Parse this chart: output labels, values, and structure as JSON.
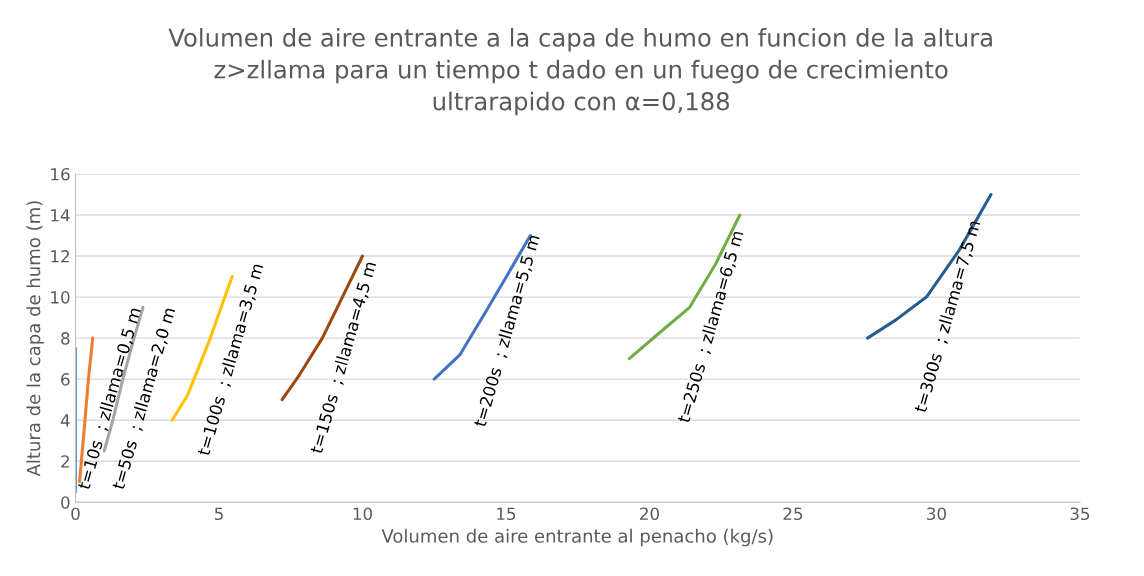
{
  "chart_data": {
    "type": "line",
    "title": "Volumen de aire entrante a la capa de humo en funcion de la altura\nz>zllama para un tiempo t dado en un fuego de crecimiento\nultrarapido con α=0,188",
    "xlabel": "Volumen de aire entrante al penacho (kg/s)",
    "ylabel": "Altura de la capa de humo (m)",
    "xlim": [
      0,
      35
    ],
    "xticks": [
      0,
      5,
      10,
      15,
      20,
      25,
      30,
      35
    ],
    "ylim": [
      0,
      16
    ],
    "yticks": [
      0,
      2,
      4,
      6,
      8,
      10,
      12,
      14,
      16
    ],
    "grid": "y",
    "legend": false,
    "marker": "none",
    "line_style": "solid",
    "series": [
      {
        "color": "#5b9bd5",
        "x": [
          0,
          0
        ],
        "values": [
          0.5,
          7.5
        ]
      },
      {
        "name": "t=10s  ; zllama=0,5 m",
        "color": "#ed7d31",
        "x": [
          0.14,
          0.3,
          0.45,
          0.6
        ],
        "values": [
          1,
          3.5,
          6,
          8
        ]
      },
      {
        "name": "t=50s  ; zllama=2,0 m",
        "color": "#a5a5a5",
        "x": [
          1.0,
          1.3,
          1.65,
          2.0,
          2.35
        ],
        "values": [
          2.5,
          4.0,
          6.0,
          7.8,
          9.5
        ]
      },
      {
        "name": "t=100s  ; zllama=3,5 m",
        "color": "#ffc000",
        "x": [
          3.37,
          3.9,
          4.67,
          5.1,
          5.46
        ],
        "values": [
          4,
          5.2,
          7.9,
          9.6,
          11
        ]
      },
      {
        "name": "t=150s  ; zllama=4,5 m",
        "color": "#9e480e",
        "x": [
          7.2,
          7.8,
          8.6,
          9.3,
          10.0
        ],
        "values": [
          5,
          6.2,
          8,
          10,
          12
        ]
      },
      {
        "name": "t=200s  ; zllama=5,5 m",
        "color": "#4472c4",
        "x": [
          12.5,
          13.4,
          14.3,
          15.1,
          15.85
        ],
        "values": [
          6,
          7.2,
          9.3,
          11.2,
          13
        ]
      },
      {
        "name": "t=250s  ; zllama=6,5 m",
        "color": "#70ad47",
        "x": [
          19.3,
          20.3,
          21.4,
          22.3,
          23.15
        ],
        "values": [
          7,
          8.2,
          9.5,
          11.6,
          14
        ]
      },
      {
        "name": "t=300s  ; zllama=7,5 m",
        "color": "#255e91",
        "x": [
          27.6,
          28.6,
          29.65,
          30.8,
          31.9
        ],
        "values": [
          8,
          8.9,
          10,
          12.3,
          15
        ]
      }
    ]
  }
}
